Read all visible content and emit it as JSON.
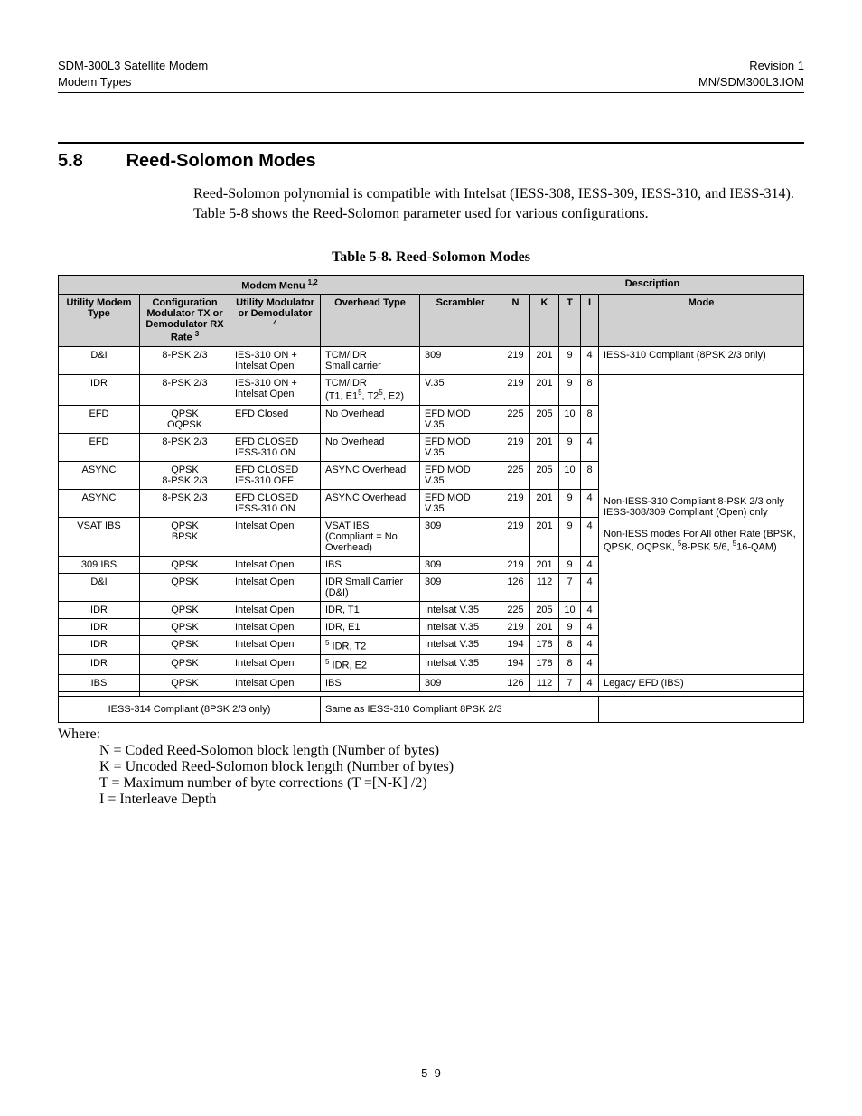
{
  "header": {
    "left1": "SDM-300L3 Satellite Modem",
    "left2": "Modem Types",
    "right1": "Revision 1",
    "right2": "MN/SDM300L3.IOM"
  },
  "section": {
    "number": "5.8",
    "title": "Reed-Solomon Modes"
  },
  "intro": "Reed-Solomon polynomial is compatible with Intelsat (IESS-308, IESS-309, IESS-310, and IESS-314). Table 5-8 shows the Reed-Solomon parameter used for various configurations.",
  "table": {
    "caption": "Table 5-8.  Reed-Solomon Modes",
    "group_modem": "Modem Menu ",
    "group_modem_sup": "1,2",
    "group_desc": "Description",
    "col_umt": "Utility Modem Type",
    "col_cfg_l1": "Configuration Modulator TX or Demodulator RX Rate ",
    "col_cfg_sup": "3",
    "col_util_l1": "Utility Modulator or Demodulator ",
    "col_util_sup": "4",
    "col_oh": "Overhead Type",
    "col_scr": "Scrambler",
    "col_n": "N",
    "col_k": "K",
    "col_t": "T",
    "col_i": "I",
    "col_mode": "Mode",
    "rows": [
      {
        "umt": "D&I",
        "cfg": "8-PSK 2/3",
        "util": "IES-310 ON + Intelsat Open",
        "oh": "TCM/IDR\nSmall carrier",
        "scr": "309",
        "n": "219",
        "k": "201",
        "t": "9",
        "i": "4"
      },
      {
        "umt": "IDR",
        "cfg": "8-PSK 2/3",
        "util": "IES-310 ON + Intelsat Open",
        "oh_html": "TCM/IDR<br>(T1, E1<sup>5</sup>, T2<sup>5</sup>, E2)",
        "scr": "V.35",
        "n": "219",
        "k": "201",
        "t": "9",
        "i": "8"
      },
      {
        "umt": "EFD",
        "cfg": "QPSK\nOQPSK",
        "util": "EFD Closed",
        "oh": "No Overhead",
        "scr": "EFD MOD\nV.35",
        "n": "225",
        "k": "205",
        "t": "10",
        "i": "8"
      },
      {
        "umt": "EFD",
        "cfg": "8-PSK 2/3",
        "util": "EFD CLOSED\nIESS-310 ON",
        "oh": "No Overhead",
        "scr": "EFD MOD\nV.35",
        "n": "219",
        "k": "201",
        "t": "9",
        "i": "4"
      },
      {
        "umt": "ASYNC",
        "cfg": "QPSK\n8-PSK 2/3",
        "util": "EFD CLOSED\nIES-310 OFF",
        "oh": "ASYNC Overhead",
        "scr": "EFD MOD\nV.35",
        "n": "225",
        "k": "205",
        "t": "10",
        "i": "8"
      },
      {
        "umt": "ASYNC",
        "cfg": "8-PSK 2/3",
        "util": "EFD CLOSED\nIESS-310 ON",
        "oh": "ASYNC Overhead",
        "scr": "EFD MOD\nV.35",
        "n": "219",
        "k": "201",
        "t": "9",
        "i": "4"
      },
      {
        "umt": "VSAT IBS",
        "cfg": "QPSK\nBPSK",
        "util": "Intelsat Open",
        "oh": "VSAT IBS (Compliant = No Overhead)",
        "scr": "309",
        "n": "219",
        "k": "201",
        "t": "9",
        "i": "4"
      },
      {
        "umt": "309 IBS",
        "cfg": "QPSK",
        "util": "Intelsat Open",
        "oh": "IBS",
        "scr": "309",
        "n": "219",
        "k": "201",
        "t": "9",
        "i": "4"
      },
      {
        "umt": "D&I",
        "cfg": "QPSK",
        "util": "Intelsat Open",
        "oh": "IDR Small Carrier (D&I)",
        "scr": "309",
        "n": "126",
        "k": "112",
        "t": "7",
        "i": "4"
      },
      {
        "umt": "IDR",
        "cfg": "QPSK",
        "util": "Intelsat Open",
        "oh": "IDR, T1",
        "scr": "Intelsat V.35",
        "n": "225",
        "k": "205",
        "t": "10",
        "i": "4"
      },
      {
        "umt": "IDR",
        "cfg": "QPSK",
        "util": "Intelsat Open",
        "oh": "IDR, E1",
        "scr": "Intelsat V.35",
        "n": "219",
        "k": "201",
        "t": "9",
        "i": "4"
      },
      {
        "umt": "IDR",
        "cfg": "QPSK",
        "util": "Intelsat Open",
        "oh_html": "<sup>5</sup> IDR, T2",
        "scr": "Intelsat V.35",
        "n": "194",
        "k": "178",
        "t": "8",
        "i": "4"
      },
      {
        "umt": "IDR",
        "cfg": "QPSK",
        "util": "Intelsat Open",
        "oh_html": "<sup>5</sup> IDR, E2",
        "scr": "Intelsat V.35",
        "n": "194",
        "k": "178",
        "t": "8",
        "i": "4"
      },
      {
        "umt": "IBS",
        "cfg": "QPSK",
        "util": "Intelsat Open",
        "oh": "IBS",
        "scr": "309",
        "n": "126",
        "k": "112",
        "t": "7",
        "i": "4"
      }
    ],
    "mode1": "IESS-310 Compliant (8PSK 2/3 only)",
    "mode2_html": "Non-IESS-310 Compliant 8-PSK 2/3 only<br>IESS-308/309 Compliant (Open) only<br><br>Non-IESS modes For All other Rate (BPSK, QPSK, OQPSK, <sup>5</sup>8-PSK 5/6, <sup>5</sup>16-QAM)",
    "mode3": "Legacy EFD (IBS)",
    "footrow_left": "IESS-314 Compliant (8PSK 2/3 only)",
    "footrow_right": "Same as IESS-310 Compliant 8PSK 2/3"
  },
  "where": {
    "title": "Where:",
    "n": "N = Coded Reed-Solomon block length (Number of bytes)",
    "k": "K = Uncoded Reed-Solomon block length (Number of bytes)",
    "t": "T = Maximum number of byte corrections (T =[N-K] /2)",
    "i": "I = Interleave Depth"
  },
  "footer": "5–9"
}
